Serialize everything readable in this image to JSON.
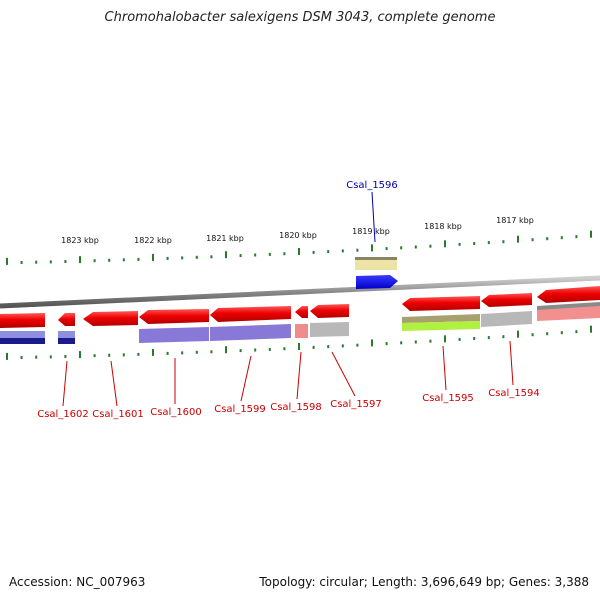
{
  "title": "Chromohalobacter salexigens DSM 3043, complete genome",
  "kbp_labels": [
    "1823 kbp",
    "1822 kbp",
    "1821 kbp",
    "1820 kbp",
    "1819 kbp",
    "1818 kbp",
    "1817 kbp"
  ],
  "genes": [
    {
      "name": "Csal_1602",
      "color": "#cc0000"
    },
    {
      "name": "Csal_1601",
      "color": "#cc0000"
    },
    {
      "name": "Csal_1600",
      "color": "#cc0000"
    },
    {
      "name": "Csal_1599",
      "color": "#cc0000"
    },
    {
      "name": "Csal_1598",
      "color": "#cc0000"
    },
    {
      "name": "Csal_1597",
      "color": "#cc0000"
    },
    {
      "name": "Csal_1596",
      "color": "#0000aa"
    },
    {
      "name": "Csal_1595",
      "color": "#cc0000"
    },
    {
      "name": "Csal_1594",
      "color": "#cc0000"
    }
  ],
  "footer": {
    "accession": "Accession: NC_007963",
    "stats": "Topology: circular; Length: 3,696,649 bp; Genes: 3,388"
  }
}
